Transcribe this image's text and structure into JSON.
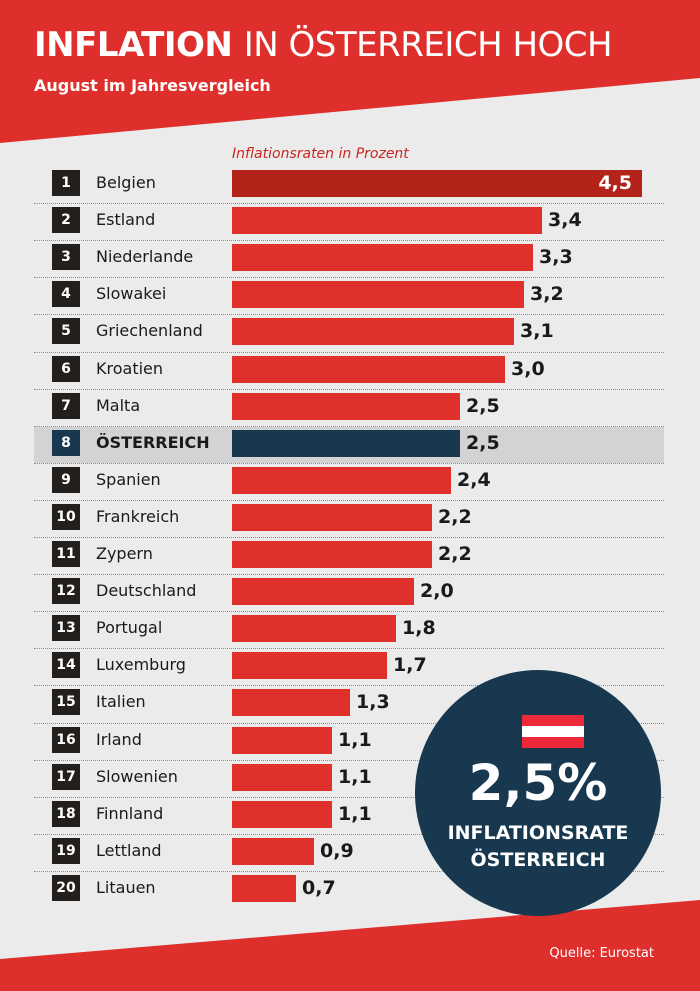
{
  "header": {
    "title_strong": "INFLATION",
    "title_rest": "IN ÖSTERREICH HOCH",
    "subtitle": "August im Jahresvergleich"
  },
  "chart_data": {
    "type": "bar",
    "orientation": "horizontal",
    "unit_label": "Inflationsraten in Prozent",
    "ranks": [
      "1",
      "2",
      "3",
      "4",
      "5",
      "6",
      "7",
      "8",
      "9",
      "10",
      "11",
      "12",
      "13",
      "14",
      "15",
      "16",
      "17",
      "18",
      "19",
      "20"
    ],
    "categories": [
      "Belgien",
      "Estland",
      "Niederlande",
      "Slowakei",
      "Griechenland",
      "Kroatien",
      "Malta",
      "ÖSTERREICH",
      "Spanien",
      "Frankreich",
      "Zypern",
      "Deutschland",
      "Portugal",
      "Luxemburg",
      "Italien",
      "Irland",
      "Slowenien",
      "Finnland",
      "Lettland",
      "Litauen"
    ],
    "values": [
      4.5,
      3.4,
      3.3,
      3.2,
      3.1,
      3.0,
      2.5,
      2.5,
      2.4,
      2.2,
      2.2,
      2.0,
      1.8,
      1.7,
      1.3,
      1.1,
      1.1,
      1.1,
      0.9,
      0.7
    ],
    "value_labels": [
      "4,5",
      "3,4",
      "3,3",
      "3,2",
      "3,1",
      "3,0",
      "2,5",
      "2,5",
      "2,4",
      "2,2",
      "2,2",
      "2,0",
      "1,8",
      "1,7",
      "1,3",
      "1,1",
      "1,1",
      "1,1",
      "0,9",
      "0,7"
    ],
    "highlight_index": 7,
    "xlim": [
      0,
      4.5
    ],
    "grid": false,
    "colors": {
      "bar": "#e0302c",
      "top_bar": "#b3231a",
      "highlight_bar": "#17384f",
      "rank_box": "#221f1d",
      "highlight_row": "#d3d3d3"
    }
  },
  "badge": {
    "value": "2,5%",
    "caption_line1": "INFLATIONSRATE",
    "caption_line2": "ÖSTERREICH",
    "icon": "austria-flag-icon",
    "flag_colors": [
      "#ed2939",
      "#ffffff",
      "#ed2939"
    ]
  },
  "footer": {
    "source": "Quelle: Eurostat"
  },
  "theme": {
    "red": "#e0302c",
    "background": "#ebebeb"
  }
}
